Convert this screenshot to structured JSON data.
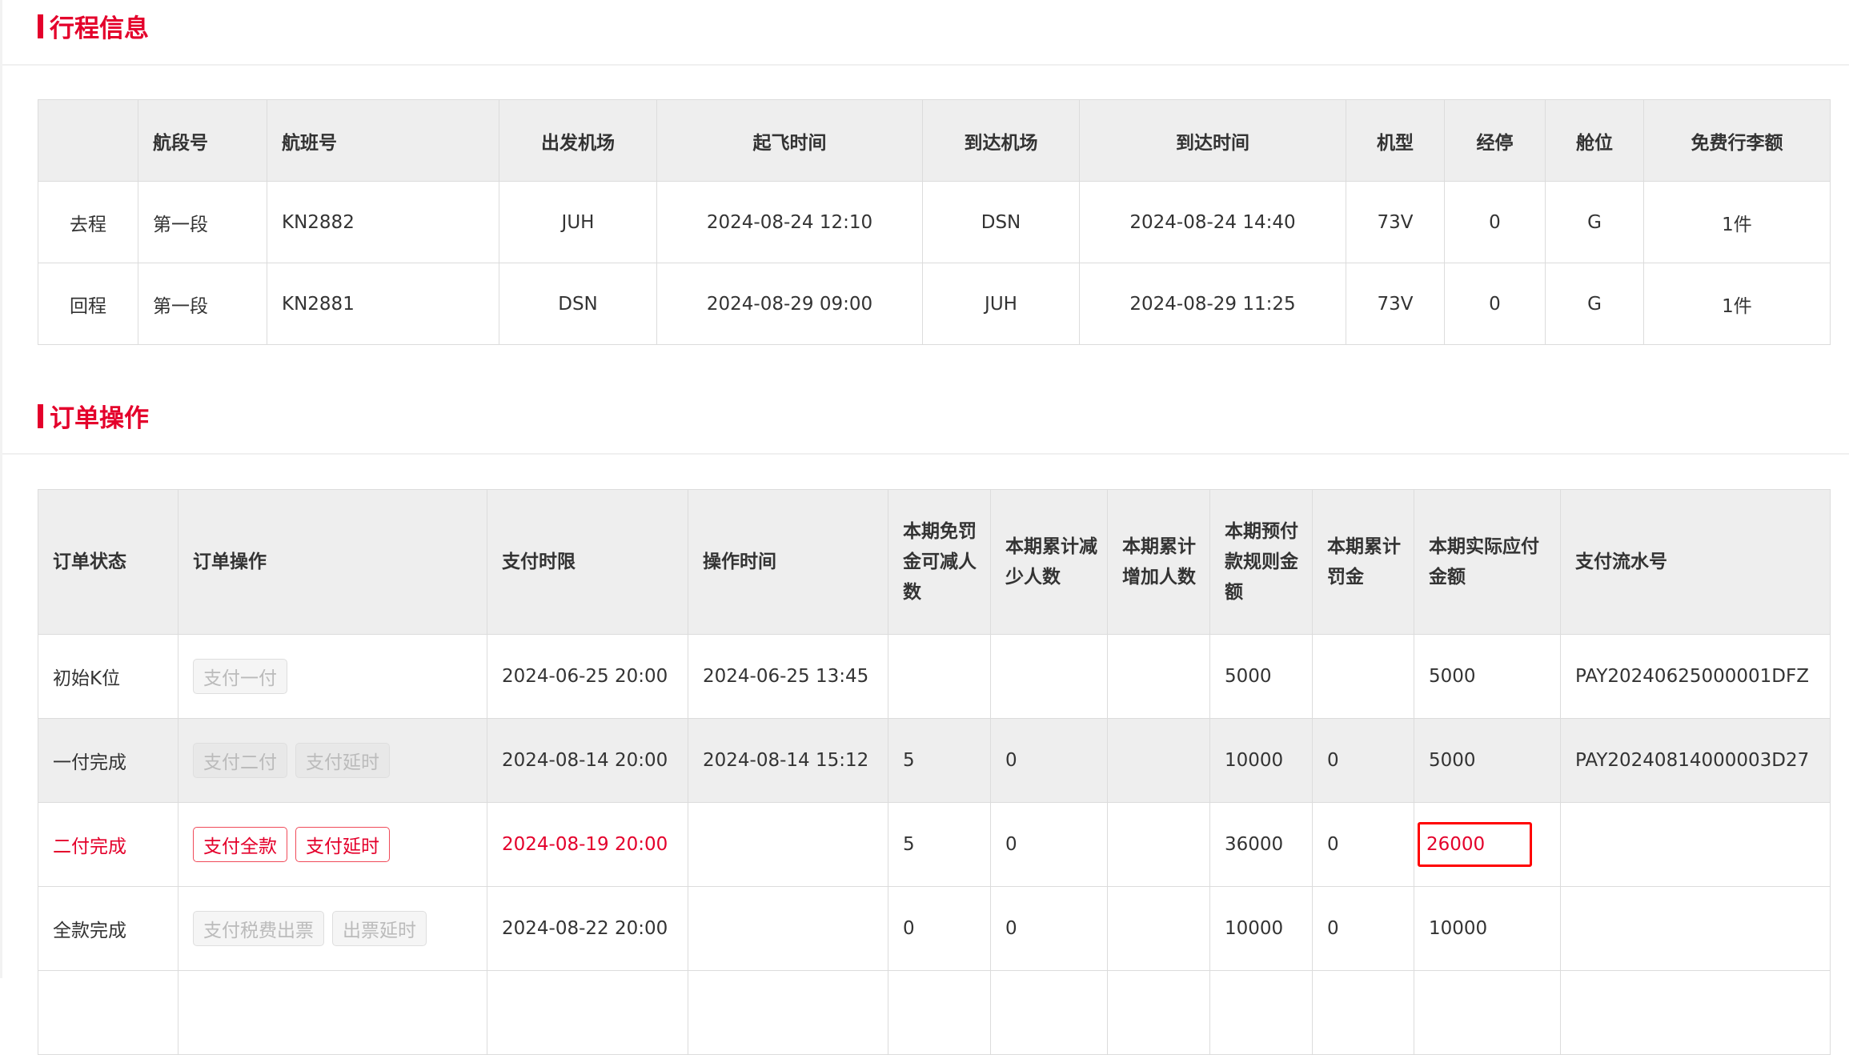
{
  "trip": {
    "title": "行程信息",
    "headers": [
      "",
      "航段号",
      "航班号",
      "出发机场",
      "起飞时间",
      "到达机场",
      "到达时间",
      "机型",
      "经停",
      "舱位",
      "免费行李额"
    ],
    "rows": [
      [
        "去程",
        "第一段",
        "KN2882",
        "JUH",
        "2024-08-24 12:10",
        "DSN",
        "2024-08-24 14:40",
        "73V",
        "0",
        "G",
        "1件"
      ],
      [
        "回程",
        "第一段",
        "KN2881",
        "DSN",
        "2024-08-29 09:00",
        "JUH",
        "2024-08-29 11:25",
        "73V",
        "0",
        "G",
        "1件"
      ]
    ]
  },
  "orders": {
    "title": "订单操作",
    "headers": [
      "订单状态",
      "订单操作",
      "支付时限",
      "操作时间",
      "本期免罚金可减人数",
      "本期累计减少人数",
      "本期累计增加人数",
      "本期预付款规则金额",
      "本期累计罚金",
      "本期实际应付金额",
      "支付流水号"
    ],
    "rows": [
      {
        "status": "初始K位",
        "actions": [
          "支付一付"
        ],
        "deadline": "2024-06-25 20:00",
        "op_time": "2024-06-25 13:45",
        "free_reduce": "",
        "reduced": "",
        "added": "",
        "prepay": "5000",
        "penalty": "",
        "payable": "5000",
        "serial": "PAY20240625000001DFZ"
      },
      {
        "status": "一付完成",
        "actions": [
          "支付二付",
          "支付延时"
        ],
        "deadline": "2024-08-14 20:00",
        "op_time": "2024-08-14 15:12",
        "free_reduce": "5",
        "reduced": "0",
        "added": "",
        "prepay": "10000",
        "penalty": "0",
        "payable": "5000",
        "serial": "PAY20240814000003D27"
      },
      {
        "status": "二付完成",
        "actions": [
          "支付全款",
          "支付延时"
        ],
        "deadline": "2024-08-19 20:00",
        "op_time": "",
        "free_reduce": "5",
        "reduced": "0",
        "added": "",
        "prepay": "36000",
        "penalty": "0",
        "payable": "26000",
        "serial": ""
      },
      {
        "status": "全款完成",
        "actions": [
          "支付税费出票",
          "出票延时"
        ],
        "deadline": "2024-08-22 20:00",
        "op_time": "",
        "free_reduce": "0",
        "reduced": "0",
        "added": "",
        "prepay": "10000",
        "penalty": "0",
        "payable": "10000",
        "serial": ""
      }
    ]
  },
  "colors": {
    "accent": "#e4002b",
    "header_bg": "#eeeeee",
    "highlight_box": "#ff0000"
  }
}
